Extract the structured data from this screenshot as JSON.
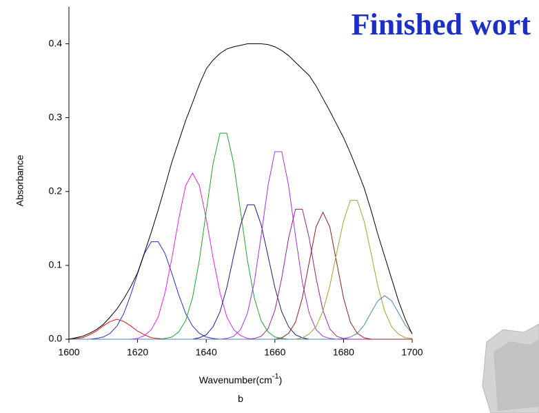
{
  "chart_data": {
    "type": "line",
    "title": "Finished wort",
    "x_label": [
      "Wavenumber(cm",
      "-1",
      ")"
    ],
    "y_label": "Absorbance",
    "caption": "b",
    "xlim": [
      1600,
      1700
    ],
    "ylim": [
      0,
      0.45
    ],
    "xticks": [
      1600,
      1620,
      1640,
      1660,
      1680,
      1700
    ],
    "yticks": [
      {
        "value": 0,
        "label": "0.0"
      },
      0.1,
      0.2,
      0.3,
      0.4
    ],
    "x": [
      1600,
      1602,
      1604,
      1606,
      1608,
      1610,
      1612,
      1614,
      1616,
      1618,
      1620,
      1622,
      1624,
      1626,
      1628,
      1630,
      1632,
      1634,
      1636,
      1638,
      1640,
      1642,
      1644,
      1646,
      1648,
      1650,
      1652,
      1654,
      1656,
      1658,
      1660,
      1662,
      1664,
      1666,
      1668,
      1670,
      1672,
      1674,
      1676,
      1678,
      1680,
      1682,
      1684,
      1686,
      1688,
      1690,
      1692,
      1694,
      1696,
      1698,
      1700
    ],
    "series": [
      {
        "color": "#e01010",
        "values": [
          0,
          0.001,
          0.002,
          0.006,
          0.011,
          0.018,
          0.024,
          0.027,
          0.024,
          0.018,
          0.011,
          0.006,
          0.002,
          0.001,
          0,
          0,
          0,
          0,
          0,
          0,
          0,
          0,
          0,
          0,
          0,
          0,
          0,
          0,
          0,
          0,
          0,
          0,
          0,
          0,
          0,
          0,
          0,
          0,
          0,
          0,
          0,
          0,
          0,
          0,
          0,
          0,
          0,
          0,
          0,
          0,
          0
        ]
      },
      {
        "color": "#2a2ad0",
        "values": [
          0,
          0,
          0,
          0,
          0.001,
          0.003,
          0.008,
          0.018,
          0.035,
          0.06,
          0.089,
          0.116,
          0.132,
          0.132,
          0.116,
          0.089,
          0.06,
          0.035,
          0.018,
          0.008,
          0.003,
          0.001,
          0,
          0,
          0,
          0,
          0,
          0,
          0,
          0,
          0,
          0,
          0,
          0,
          0,
          0,
          0,
          0,
          0,
          0,
          0,
          0,
          0,
          0,
          0,
          0,
          0,
          0,
          0,
          0,
          0
        ]
      },
      {
        "color": "#e020e0",
        "values": [
          0,
          0,
          0,
          0,
          0,
          0,
          0,
          0,
          0,
          0,
          0.001,
          0.005,
          0.013,
          0.03,
          0.063,
          0.11,
          0.163,
          0.208,
          0.225,
          0.208,
          0.163,
          0.11,
          0.063,
          0.03,
          0.013,
          0.005,
          0.001,
          0,
          0,
          0,
          0,
          0,
          0,
          0,
          0,
          0,
          0,
          0,
          0,
          0,
          0,
          0,
          0,
          0,
          0,
          0,
          0,
          0,
          0,
          0,
          0
        ]
      },
      {
        "color": "#20a030",
        "values": [
          0,
          0,
          0,
          0,
          0,
          0,
          0,
          0,
          0,
          0,
          0,
          0,
          0,
          0,
          0.001,
          0.003,
          0.01,
          0.025,
          0.056,
          0.107,
          0.173,
          0.238,
          0.279,
          0.279,
          0.238,
          0.173,
          0.107,
          0.056,
          0.025,
          0.01,
          0.003,
          0.001,
          0,
          0,
          0,
          0,
          0,
          0,
          0,
          0,
          0,
          0,
          0,
          0,
          0,
          0,
          0,
          0,
          0,
          0,
          0
        ]
      },
      {
        "color": "#1a1a80",
        "values": [
          0,
          0,
          0,
          0,
          0,
          0,
          0,
          0,
          0,
          0,
          0,
          0,
          0,
          0,
          0,
          0,
          0,
          0,
          0,
          0.002,
          0.006,
          0.017,
          0.037,
          0.07,
          0.113,
          0.155,
          0.182,
          0.182,
          0.155,
          0.113,
          0.07,
          0.037,
          0.017,
          0.006,
          0.002,
          0,
          0,
          0,
          0,
          0,
          0,
          0,
          0,
          0,
          0,
          0,
          0,
          0,
          0,
          0,
          0
        ]
      },
      {
        "color": "#a030e8",
        "values": [
          0,
          0,
          0,
          0,
          0,
          0,
          0,
          0,
          0,
          0,
          0,
          0,
          0,
          0,
          0,
          0,
          0,
          0,
          0,
          0,
          0,
          0,
          0,
          0.001,
          0.004,
          0.013,
          0.035,
          0.077,
          0.14,
          0.208,
          0.254,
          0.254,
          0.208,
          0.14,
          0.077,
          0.035,
          0.013,
          0.004,
          0.001,
          0,
          0,
          0,
          0,
          0,
          0,
          0,
          0,
          0,
          0,
          0,
          0
        ]
      },
      {
        "color": "#a02090",
        "values": [
          0,
          0,
          0,
          0,
          0,
          0,
          0,
          0,
          0,
          0,
          0,
          0,
          0,
          0,
          0,
          0,
          0,
          0,
          0,
          0,
          0,
          0,
          0,
          0,
          0,
          0,
          0,
          0.001,
          0.004,
          0.014,
          0.039,
          0.083,
          0.137,
          0.176,
          0.176,
          0.137,
          0.083,
          0.039,
          0.014,
          0.004,
          0.001,
          0,
          0,
          0,
          0,
          0,
          0,
          0,
          0,
          0,
          0
        ]
      },
      {
        "color": "#8b2020",
        "values": [
          0,
          0,
          0,
          0,
          0,
          0,
          0,
          0,
          0,
          0,
          0,
          0,
          0,
          0,
          0,
          0,
          0,
          0,
          0,
          0,
          0,
          0,
          0,
          0,
          0,
          0,
          0,
          0,
          0,
          0,
          0,
          0.002,
          0.008,
          0.023,
          0.056,
          0.104,
          0.152,
          0.172,
          0.152,
          0.104,
          0.056,
          0.023,
          0.008,
          0.002,
          0,
          0,
          0,
          0,
          0,
          0,
          0
        ]
      },
      {
        "color": "#a0a030",
        "values": [
          0,
          0,
          0,
          0,
          0,
          0,
          0,
          0,
          0,
          0,
          0,
          0,
          0,
          0,
          0,
          0,
          0,
          0,
          0,
          0,
          0,
          0,
          0,
          0,
          0,
          0,
          0,
          0,
          0,
          0,
          0,
          0,
          0,
          0,
          0.002,
          0.007,
          0.017,
          0.038,
          0.072,
          0.117,
          0.16,
          0.188,
          0.188,
          0.16,
          0.117,
          0.072,
          0.038,
          0.017,
          0.007,
          0.002,
          0.001
        ]
      },
      {
        "color": "#4a80b0",
        "values": [
          0,
          0,
          0,
          0,
          0,
          0,
          0,
          0,
          0,
          0,
          0,
          0,
          0,
          0,
          0,
          0,
          0,
          0,
          0,
          0,
          0,
          0,
          0,
          0,
          0,
          0,
          0,
          0,
          0,
          0,
          0,
          0,
          0,
          0,
          0,
          0,
          0,
          0,
          0,
          0,
          0.001,
          0.003,
          0.008,
          0.019,
          0.036,
          0.052,
          0.059,
          0.052,
          0.036,
          0.019,
          0.008
        ]
      },
      {
        "color": "#000000",
        "values": [
          0,
          0.002,
          0.004,
          0.008,
          0.013,
          0.02,
          0.03,
          0.041,
          0.055,
          0.071,
          0.09,
          0.117,
          0.145,
          0.175,
          0.207,
          0.24,
          0.268,
          0.296,
          0.32,
          0.345,
          0.366,
          0.378,
          0.387,
          0.393,
          0.396,
          0.398,
          0.4,
          0.4,
          0.4,
          0.399,
          0.396,
          0.391,
          0.384,
          0.375,
          0.366,
          0.357,
          0.343,
          0.326,
          0.309,
          0.291,
          0.273,
          0.252,
          0.229,
          0.205,
          0.175,
          0.142,
          0.112,
          0.082,
          0.052,
          0.027,
          0.007
        ]
      }
    ]
  }
}
